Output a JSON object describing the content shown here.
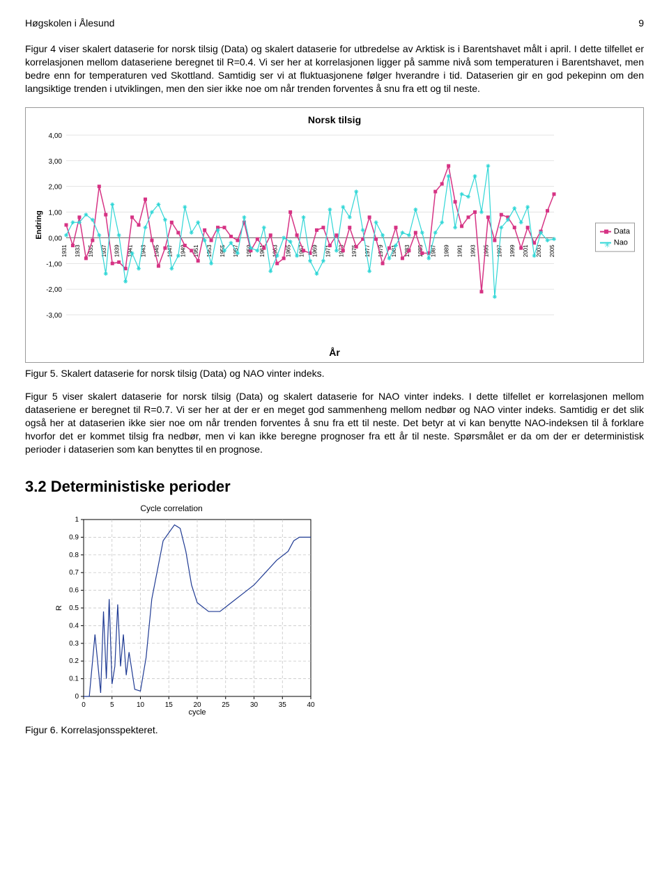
{
  "header": {
    "left": "Høgskolen i Ålesund",
    "page": "9"
  },
  "para1": "Figur 4 viser skalert dataserie for norsk tilsig (Data) og skalert dataserie for utbredelse av Arktisk is i Barentshavet målt i april. I dette tilfellet er korrelasjonen mellom dataseriene beregnet til R=0.4. Vi ser her at korrelasjonen ligger på samme nivå som temperaturen i Barentshavet, men bedre enn for temperaturen ved Skottland. Samtidig ser vi at fluktuasjonene følger hverandre i tid. Dataserien gir en god pekepinn om den langsiktige trenden i utviklingen, men den sier ikke noe om når trenden forventes å snu fra ett og til neste.",
  "chart1": {
    "type": "line",
    "title": "Norsk tilsig",
    "ylabel": "Endring",
    "xlabel": "År",
    "ylim": [
      -3,
      4
    ],
    "yticks": [
      "4,00",
      "3,00",
      "2,00",
      "1,00",
      "0,00",
      "-1,00",
      "-2,00",
      "-3,00"
    ],
    "xticks": [
      "1931",
      "1933",
      "1935",
      "1937",
      "1939",
      "1941",
      "1943",
      "1945",
      "1947",
      "1949",
      "1951",
      "1953",
      "1955",
      "1957",
      "1959",
      "1961",
      "1963",
      "1965",
      "1967",
      "1969",
      "1971",
      "1973",
      "1975",
      "1977",
      "1979",
      "1981",
      "1983",
      "1985",
      "1987",
      "1989",
      "1991",
      "1993",
      "1995",
      "1997",
      "1999",
      "2001",
      "2003",
      "2005"
    ],
    "background_color": "#ffffff",
    "grid_color": "#c8c8c8",
    "series": [
      {
        "name": "Data",
        "color": "#d63384",
        "marker": "square",
        "marker_size": 5,
        "line_width": 1.5,
        "values": [
          0.5,
          -0.3,
          0.8,
          -0.8,
          -0.1,
          2.0,
          0.9,
          -1.0,
          -0.95,
          -1.2,
          0.8,
          0.5,
          1.5,
          -0.1,
          -1.1,
          -0.4,
          0.6,
          0.2,
          -0.3,
          -0.5,
          -0.9,
          0.3,
          -0.1,
          0.4,
          0.4,
          0.05,
          -0.1,
          0.6,
          -0.5,
          -0.05,
          -0.4,
          0.1,
          -1.0,
          -0.8,
          1.0,
          0.1,
          -0.5,
          -0.6,
          0.3,
          0.4,
          -0.3,
          0.1,
          -0.5,
          0.4,
          -0.35,
          -0.05,
          0.8,
          -0.05,
          -1.0,
          -0.4,
          0.4,
          -0.8,
          -0.5,
          0.2,
          -0.6,
          -0.6,
          1.8,
          2.1,
          2.8,
          1.4,
          0.45,
          0.8,
          1.0,
          -2.1,
          0.8,
          -0.1,
          0.9,
          0.8,
          0.4,
          -0.4,
          0.4,
          -0.2,
          0.25,
          1.05,
          1.7
        ]
      },
      {
        "name": "Nao",
        "color": "#2fd6d6",
        "marker": "asterisk",
        "marker_size": 5,
        "line_width": 1.2,
        "values": [
          0.1,
          0.6,
          0.6,
          0.9,
          0.7,
          0.1,
          -1.4,
          1.3,
          0.1,
          -1.7,
          -0.6,
          -1.2,
          0.4,
          1.0,
          1.3,
          0.7,
          -1.2,
          -0.7,
          1.2,
          0.2,
          0.6,
          -0.1,
          -1.0,
          0.3,
          -0.5,
          -0.2,
          -0.6,
          0.8,
          -0.4,
          -0.5,
          0.4,
          -1.3,
          -0.7,
          0.0,
          -0.15,
          -0.7,
          0.8,
          -0.9,
          -1.4,
          -0.9,
          1.1,
          -0.5,
          1.2,
          0.8,
          1.8,
          0.3,
          -1.3,
          0.6,
          0.1,
          -0.8,
          -0.3,
          0.2,
          0.1,
          1.1,
          0.2,
          -0.8,
          0.2,
          0.6,
          2.4,
          0.4,
          1.7,
          1.6,
          2.4,
          1.0,
          2.8,
          -2.3,
          0.4,
          0.7,
          1.15,
          0.6,
          1.2,
          -0.7,
          0.2,
          -0.1,
          -0.05
        ]
      }
    ],
    "legend": [
      {
        "label": "Data",
        "color": "#d63384",
        "marker": "square"
      },
      {
        "label": "Nao",
        "color": "#2fd6d6",
        "marker": "asterisk"
      }
    ]
  },
  "caption1": "Figur 5. Skalert dataserie for norsk tilsig (Data) og NAO vinter indeks.",
  "para2": "Figur 5 viser skalert dataserie for norsk tilsig (Data) og skalert dataserie for NAO vinter indeks. I dette tilfellet er korrelasjonen mellom dataseriene er beregnet til R=0.7. Vi ser her at der er en meget god sammenheng mellom nedbør og NAO vinter indeks. Samtidig er det slik også her at dataserien ikke sier noe om når trenden forventes å snu fra ett til neste. Det betyr at vi kan benytte NAO-indeksen til å forklare hvorfor det er kommet tilsig fra nedbør, men vi kan ikke beregne prognoser fra ett år til neste. Spørsmålet er da om der er deterministisk perioder i dataserien som kan benyttes til en prognose.",
  "section_heading": "3.2 Deterministiske perioder",
  "chart2": {
    "type": "line",
    "title": "Cycle correlation",
    "ylabel": "R",
    "xlabel": "cycle",
    "xlim": [
      0,
      40
    ],
    "ylim": [
      0,
      1
    ],
    "xticks": [
      0,
      5,
      10,
      15,
      20,
      25,
      30,
      35,
      40
    ],
    "yticks": [
      0,
      0.1,
      0.2,
      0.3,
      0.4,
      0.5,
      0.6,
      0.7,
      0.8,
      0.9,
      1
    ],
    "grid_color": "#bdbdbd",
    "grid_dash": "4,3",
    "line_color": "#1f3a93",
    "line_width": 1.2,
    "x": [
      0,
      1,
      2,
      3,
      3.5,
      4,
      4.5,
      5,
      5.5,
      6,
      6.5,
      7,
      7.5,
      8,
      9,
      10,
      11,
      12,
      14,
      16,
      17,
      18,
      19,
      20,
      22,
      24,
      26,
      28,
      30,
      32,
      34,
      36,
      37,
      38,
      39,
      40
    ],
    "y": [
      0,
      0,
      0.35,
      0.02,
      0.48,
      0.1,
      0.55,
      0.07,
      0.17,
      0.52,
      0.17,
      0.35,
      0.12,
      0.25,
      0.04,
      0.03,
      0.22,
      0.55,
      0.88,
      0.97,
      0.95,
      0.82,
      0.63,
      0.53,
      0.48,
      0.48,
      0.53,
      0.58,
      0.63,
      0.7,
      0.77,
      0.82,
      0.88,
      0.9,
      0.9,
      0.9
    ]
  },
  "caption2": "Figur 6. Korrelasjonsspekteret."
}
